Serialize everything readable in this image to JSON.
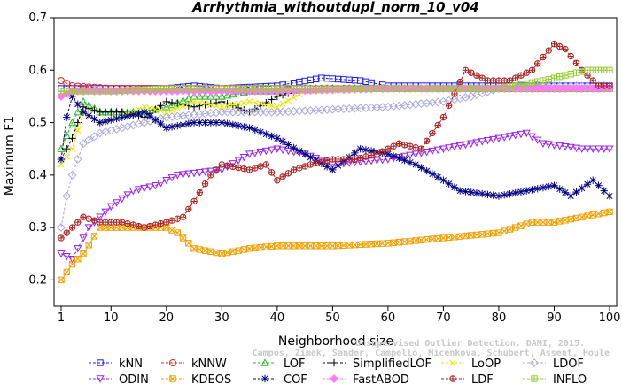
{
  "chart_data": {
    "type": "line",
    "title": "Arrhythmia_withoutdupl_norm_10_v04",
    "xlabel": "Neighborhood size",
    "ylabel": "Maximum F1",
    "xlim": [
      1,
      100
    ],
    "ylim": [
      0.15,
      0.7
    ],
    "xticks": [
      1,
      10,
      20,
      30,
      40,
      50,
      60,
      70,
      80,
      90,
      100
    ],
    "yticks": [
      0.2,
      0.3,
      0.4,
      0.5,
      0.6,
      0.7
    ],
    "grid": false,
    "legend_position": "bottom",
    "watermark": "Campos, Zimek, Sander, Campello, Micenkova, Schubert, Assent, Houle",
    "watermark2": "Unsupervised Outlier Detection. DAMI, 2015.",
    "series": [
      {
        "name": "kNN",
        "color": "#1a1aff",
        "marker": "square",
        "points": [
          [
            1,
            0.565
          ],
          [
            5,
            0.565
          ],
          [
            10,
            0.565
          ],
          [
            20,
            0.565
          ],
          [
            25,
            0.57
          ],
          [
            30,
            0.565
          ],
          [
            40,
            0.57
          ],
          [
            48,
            0.585
          ],
          [
            55,
            0.58
          ],
          [
            60,
            0.57
          ],
          [
            70,
            0.57
          ],
          [
            80,
            0.57
          ],
          [
            90,
            0.57
          ],
          [
            100,
            0.57
          ]
        ]
      },
      {
        "name": "kNNW",
        "color": "#dd2222",
        "marker": "circle",
        "points": [
          [
            1,
            0.58
          ],
          [
            3,
            0.57
          ],
          [
            10,
            0.565
          ],
          [
            20,
            0.565
          ],
          [
            30,
            0.565
          ],
          [
            40,
            0.565
          ],
          [
            50,
            0.565
          ],
          [
            60,
            0.565
          ],
          [
            70,
            0.565
          ],
          [
            80,
            0.565
          ],
          [
            90,
            0.565
          ],
          [
            100,
            0.565
          ]
        ]
      },
      {
        "name": "LOF",
        "color": "#22bb22",
        "marker": "triangle-up",
        "points": [
          [
            1,
            0.45
          ],
          [
            3,
            0.5
          ],
          [
            5,
            0.54
          ],
          [
            8,
            0.52
          ],
          [
            12,
            0.52
          ],
          [
            16,
            0.52
          ],
          [
            20,
            0.53
          ],
          [
            25,
            0.55
          ],
          [
            30,
            0.55
          ],
          [
            35,
            0.56
          ],
          [
            40,
            0.56
          ],
          [
            50,
            0.565
          ],
          [
            60,
            0.565
          ],
          [
            80,
            0.565
          ],
          [
            100,
            0.565
          ]
        ]
      },
      {
        "name": "SimplifiedLOF",
        "color": "#000000",
        "marker": "plus",
        "points": [
          [
            1,
            0.43
          ],
          [
            3,
            0.47
          ],
          [
            5,
            0.53
          ],
          [
            8,
            0.52
          ],
          [
            12,
            0.52
          ],
          [
            16,
            0.51
          ],
          [
            20,
            0.54
          ],
          [
            25,
            0.53
          ],
          [
            30,
            0.54
          ],
          [
            35,
            0.52
          ],
          [
            40,
            0.55
          ],
          [
            45,
            0.565
          ],
          [
            60,
            0.565
          ],
          [
            100,
            0.565
          ]
        ]
      },
      {
        "name": "LoOP",
        "color": "#e6e600",
        "marker": "x",
        "points": [
          [
            1,
            0.42
          ],
          [
            3,
            0.45
          ],
          [
            5,
            0.52
          ],
          [
            8,
            0.5
          ],
          [
            12,
            0.51
          ],
          [
            16,
            0.53
          ],
          [
            20,
            0.52
          ],
          [
            25,
            0.54
          ],
          [
            30,
            0.53
          ],
          [
            35,
            0.54
          ],
          [
            40,
            0.53
          ],
          [
            45,
            0.56
          ],
          [
            60,
            0.565
          ],
          [
            100,
            0.565
          ]
        ]
      },
      {
        "name": "LDOF",
        "color": "#aaaadd",
        "marker": "diamond",
        "points": [
          [
            1,
            0.3
          ],
          [
            2,
            0.36
          ],
          [
            3,
            0.4
          ],
          [
            5,
            0.46
          ],
          [
            8,
            0.48
          ],
          [
            12,
            0.49
          ],
          [
            16,
            0.5
          ],
          [
            20,
            0.51
          ],
          [
            30,
            0.52
          ],
          [
            40,
            0.52
          ],
          [
            50,
            0.525
          ],
          [
            60,
            0.53
          ],
          [
            70,
            0.54
          ],
          [
            75,
            0.55
          ],
          [
            80,
            0.565
          ],
          [
            90,
            0.57
          ],
          [
            100,
            0.57
          ]
        ]
      },
      {
        "name": "ODIN",
        "color": "#9922ee",
        "marker": "triangle-down",
        "points": [
          [
            1,
            0.25
          ],
          [
            3,
            0.24
          ],
          [
            6,
            0.3
          ],
          [
            10,
            0.34
          ],
          [
            14,
            0.37
          ],
          [
            18,
            0.38
          ],
          [
            22,
            0.4
          ],
          [
            30,
            0.41
          ],
          [
            35,
            0.44
          ],
          [
            40,
            0.45
          ],
          [
            45,
            0.44
          ],
          [
            50,
            0.42
          ],
          [
            60,
            0.43
          ],
          [
            70,
            0.45
          ],
          [
            75,
            0.46
          ],
          [
            80,
            0.47
          ],
          [
            85,
            0.48
          ],
          [
            88,
            0.46
          ],
          [
            95,
            0.45
          ],
          [
            100,
            0.45
          ]
        ]
      },
      {
        "name": "KDEOS",
        "color": "#f0a000",
        "marker": "square-x",
        "points": [
          [
            1,
            0.2
          ],
          [
            3,
            0.23
          ],
          [
            5,
            0.25
          ],
          [
            8,
            0.3
          ],
          [
            12,
            0.3
          ],
          [
            16,
            0.3
          ],
          [
            20,
            0.3
          ],
          [
            22,
            0.29
          ],
          [
            25,
            0.26
          ],
          [
            30,
            0.25
          ],
          [
            35,
            0.26
          ],
          [
            40,
            0.265
          ],
          [
            50,
            0.265
          ],
          [
            60,
            0.27
          ],
          [
            70,
            0.28
          ],
          [
            80,
            0.29
          ],
          [
            86,
            0.31
          ],
          [
            90,
            0.31
          ],
          [
            95,
            0.32
          ],
          [
            100,
            0.33
          ]
        ]
      },
      {
        "name": "COF",
        "color": "#000088",
        "marker": "star",
        "points": [
          [
            1,
            0.43
          ],
          [
            2,
            0.51
          ],
          [
            3,
            0.55
          ],
          [
            5,
            0.52
          ],
          [
            8,
            0.5
          ],
          [
            12,
            0.51
          ],
          [
            16,
            0.52
          ],
          [
            20,
            0.49
          ],
          [
            25,
            0.5
          ],
          [
            30,
            0.5
          ],
          [
            35,
            0.49
          ],
          [
            40,
            0.47
          ],
          [
            45,
            0.44
          ],
          [
            50,
            0.41
          ],
          [
            55,
            0.45
          ],
          [
            60,
            0.44
          ],
          [
            65,
            0.42
          ],
          [
            70,
            0.39
          ],
          [
            73,
            0.37
          ],
          [
            80,
            0.36
          ],
          [
            85,
            0.37
          ],
          [
            90,
            0.38
          ],
          [
            93,
            0.36
          ],
          [
            97,
            0.39
          ],
          [
            100,
            0.36
          ]
        ]
      },
      {
        "name": "FastABOD",
        "color": "#ff77ff",
        "marker": "diamond-filled",
        "points": [
          [
            1,
            0.55
          ],
          [
            3,
            0.56
          ],
          [
            10,
            0.56
          ],
          [
            20,
            0.56
          ],
          [
            30,
            0.56
          ],
          [
            40,
            0.56
          ],
          [
            60,
            0.565
          ],
          [
            80,
            0.565
          ],
          [
            100,
            0.565
          ]
        ]
      },
      {
        "name": "LDF",
        "color": "#aa2222",
        "marker": "circle-plus",
        "points": [
          [
            1,
            0.28
          ],
          [
            3,
            0.3
          ],
          [
            5,
            0.32
          ],
          [
            8,
            0.31
          ],
          [
            12,
            0.31
          ],
          [
            16,
            0.3
          ],
          [
            20,
            0.31
          ],
          [
            23,
            0.32
          ],
          [
            25,
            0.35
          ],
          [
            28,
            0.4
          ],
          [
            30,
            0.42
          ],
          [
            35,
            0.41
          ],
          [
            38,
            0.42
          ],
          [
            40,
            0.39
          ],
          [
            43,
            0.41
          ],
          [
            46,
            0.42
          ],
          [
            50,
            0.43
          ],
          [
            54,
            0.43
          ],
          [
            58,
            0.44
          ],
          [
            62,
            0.46
          ],
          [
            66,
            0.45
          ],
          [
            70,
            0.51
          ],
          [
            74,
            0.6
          ],
          [
            78,
            0.58
          ],
          [
            82,
            0.58
          ],
          [
            86,
            0.6
          ],
          [
            90,
            0.65
          ],
          [
            92,
            0.64
          ],
          [
            95,
            0.6
          ],
          [
            98,
            0.57
          ],
          [
            100,
            0.57
          ]
        ]
      },
      {
        "name": "INFLO",
        "color": "#99cc33",
        "marker": "square-plus",
        "points": [
          [
            1,
            0.56
          ],
          [
            10,
            0.56
          ],
          [
            20,
            0.565
          ],
          [
            40,
            0.565
          ],
          [
            60,
            0.565
          ],
          [
            80,
            0.565
          ],
          [
            88,
            0.58
          ],
          [
            92,
            0.59
          ],
          [
            96,
            0.6
          ],
          [
            100,
            0.6
          ]
        ]
      }
    ]
  }
}
